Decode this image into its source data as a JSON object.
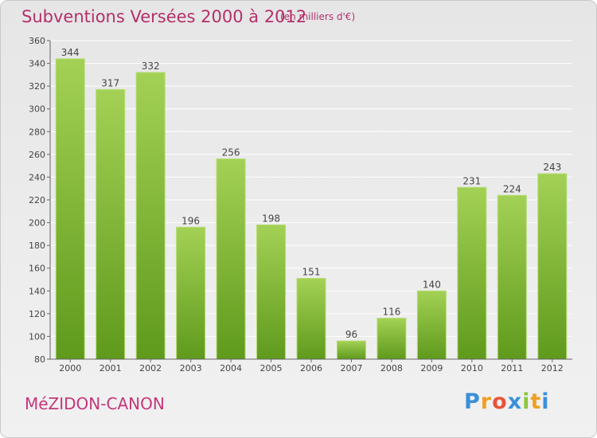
{
  "title": "Subventions Versées 2000 à 2012",
  "subtitle": "(en milliers d'€)",
  "commune": "MéZIDON-CANON",
  "logo": {
    "letters": [
      "P",
      "r",
      "o",
      "x",
      "i",
      "t",
      "i"
    ],
    "colors": [
      "#3a8fd8",
      "#f0a020",
      "#e8543a",
      "#3a8fd8",
      "#8cc63f",
      "#f0a020",
      "#3a8fd8"
    ]
  },
  "chart_data": {
    "type": "bar",
    "title": "Subventions Versées 2000 à 2012",
    "subtitle": "(en milliers d'€)",
    "categories": [
      "2000",
      "2001",
      "2002",
      "2003",
      "2004",
      "2005",
      "2006",
      "2007",
      "2008",
      "2009",
      "2010",
      "2011",
      "2012"
    ],
    "values": [
      344,
      317,
      332,
      196,
      256,
      198,
      151,
      96,
      116,
      140,
      231,
      224,
      243
    ],
    "ylim": [
      80,
      360
    ],
    "yticks": [
      80,
      100,
      120,
      140,
      160,
      180,
      200,
      220,
      240,
      260,
      280,
      300,
      320,
      340,
      360
    ],
    "grid": true,
    "colors": {
      "bar_light": "#a3d155",
      "bar_dark": "#5f9a1c",
      "grid": "#ffffff"
    }
  }
}
